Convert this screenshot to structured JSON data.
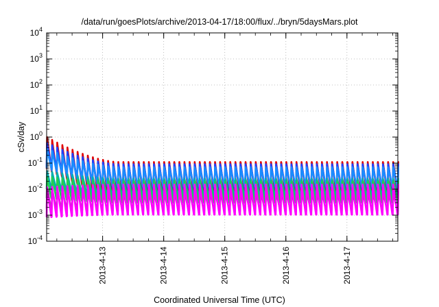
{
  "chart_data": {
    "type": "line",
    "title": "/data/run/goesPlots/archive/2013-04-17/18:00/flux/../bryn/5daysMars.plot",
    "xlabel": "Coordinated Universal Time (UTC)",
    "ylabel": "cSv/day",
    "y_scale": "log",
    "ylim_exponents": [
      -4,
      4
    ],
    "y_ticks": [
      {
        "base": "10",
        "exp": "-4"
      },
      {
        "base": "10",
        "exp": "-3"
      },
      {
        "base": "10",
        "exp": "-2"
      },
      {
        "base": "10",
        "exp": "-1"
      },
      {
        "base": "10",
        "exp": "0"
      },
      {
        "base": "10",
        "exp": "1"
      },
      {
        "base": "10",
        "exp": "2"
      },
      {
        "base": "10",
        "exp": "3"
      },
      {
        "base": "10",
        "exp": "4"
      }
    ],
    "x_range_days": [
      "2013-04-12 02:00",
      "2013-04-17 20:00"
    ],
    "x_ticks": [
      "2013-4-13",
      "2013-4-14",
      "2013-4-15",
      "2013-4-16",
      "2013-4-17"
    ],
    "grid": true,
    "sawtooth_period_hours": 2,
    "series": [
      {
        "color": "#e00000",
        "start_peak": 1.0,
        "steady_peak": 0.11,
        "decay_ratio": 0.06
      },
      {
        "color": "#2040ff",
        "start_peak": 0.6,
        "steady_peak": 0.09,
        "decay_ratio": 0.12
      },
      {
        "color": "#1a8cff",
        "start_peak": 0.35,
        "steady_peak": 0.07,
        "decay_ratio": 0.18
      },
      {
        "color": "#00b0b0",
        "start_peak": 0.05,
        "steady_peak": 0.025,
        "decay_ratio": 0.2
      },
      {
        "color": "#22cc55",
        "start_peak": 0.03,
        "steady_peak": 0.02,
        "decay_ratio": 0.15
      },
      {
        "color": "#aa44aa",
        "start_peak": 0.01,
        "steady_peak": 0.008,
        "decay_ratio": 0.18
      },
      {
        "color": "#ff00ff",
        "start_peak": 0.012,
        "steady_peak": 0.015,
        "decay_ratio": 0.07
      }
    ]
  }
}
